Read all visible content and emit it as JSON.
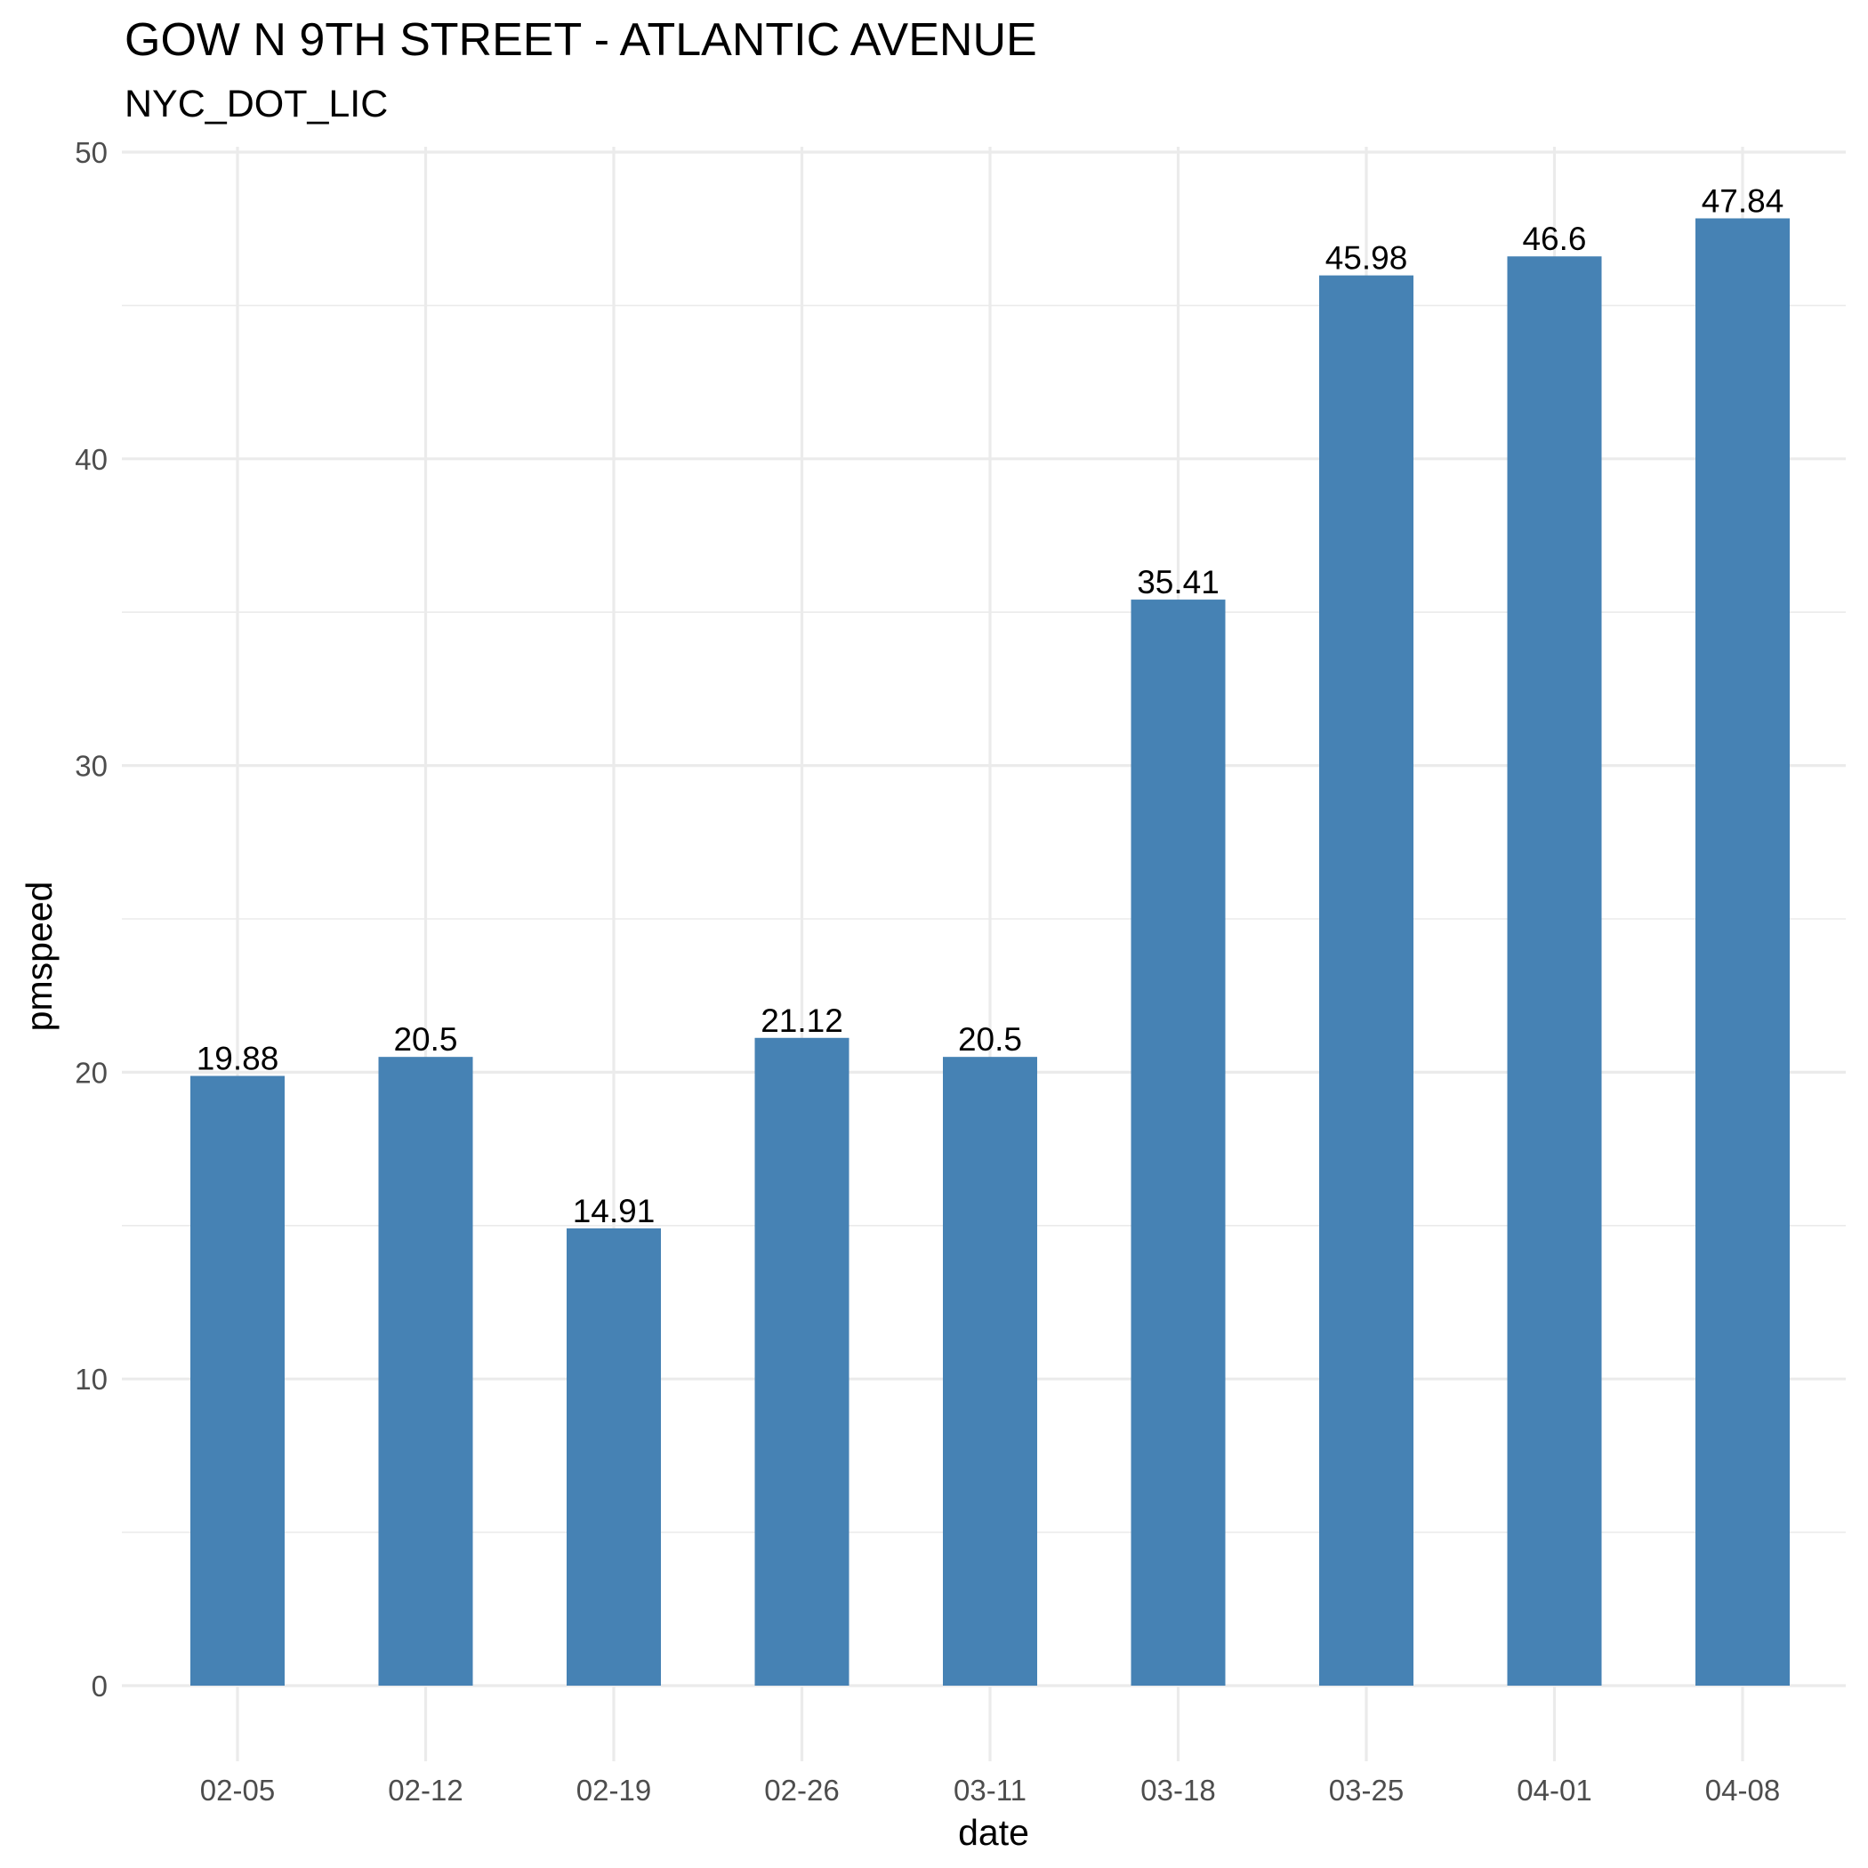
{
  "chart_data": {
    "type": "bar",
    "title": "GOW N 9TH STREET - ATLANTIC AVENUE",
    "subtitle": "NYC_DOT_LIC",
    "xlabel": "date",
    "ylabel": "pmspeed",
    "categories": [
      "02-05",
      "02-12",
      "02-19",
      "02-26",
      "03-11",
      "03-18",
      "03-25",
      "04-01",
      "04-08"
    ],
    "values": [
      19.88,
      20.5,
      14.91,
      21.12,
      20.5,
      35.41,
      45.98,
      46.6,
      47.84
    ],
    "data_labels": [
      "19.88",
      "20.5",
      "14.91",
      "21.12",
      "20.5",
      "35.41",
      "45.98",
      "46.6",
      "47.84"
    ],
    "ylim": [
      0,
      50
    ],
    "yticks": [
      0,
      10,
      20,
      30,
      40,
      50
    ],
    "ytick_labels": [
      "0",
      "10",
      "20",
      "30",
      "40",
      "50"
    ],
    "grid": true,
    "legend": "none",
    "bar_color": "#4682B4"
  }
}
